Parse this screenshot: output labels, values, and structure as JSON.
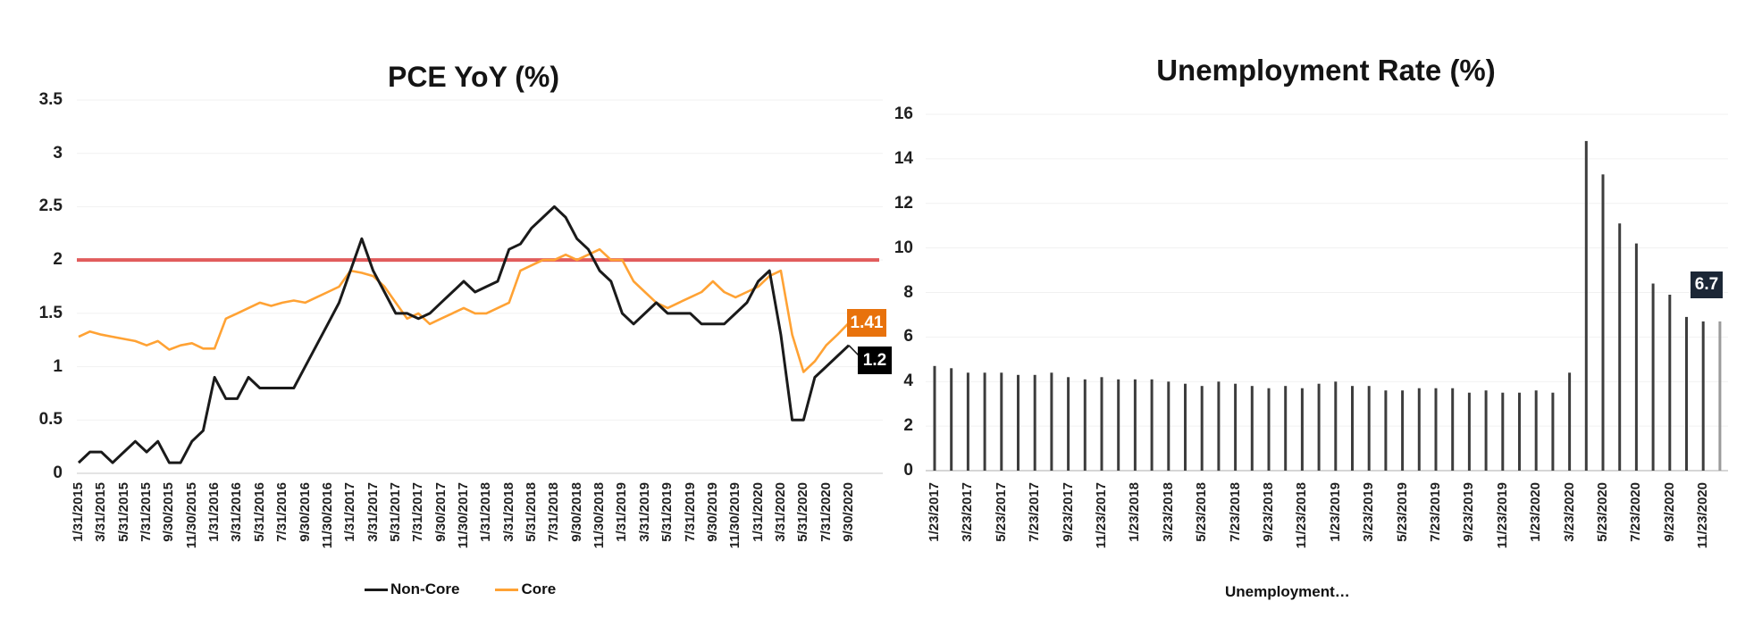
{
  "page": {
    "background": "#FFFFFF"
  },
  "chart_data": [
    {
      "type": "line",
      "title": "PCE YoY (%)",
      "ylim": [
        0,
        3.5
      ],
      "grid": true,
      "legend_position": "bottom",
      "y_ticks": [
        "3.5",
        "3",
        "2.5",
        "2",
        "1.5",
        "1",
        "0.5",
        "0"
      ],
      "y_tick_values": [
        3.5,
        3,
        2.5,
        2,
        1.5,
        1,
        0.5,
        0
      ],
      "x_labels": [
        "1/31/2015",
        "3/31/2015",
        "5/31/2015",
        "7/31/2015",
        "9/30/2015",
        "11/30/2015",
        "1/31/2016",
        "3/31/2016",
        "5/31/2016",
        "7/31/2016",
        "9/30/2016",
        "11/30/2016",
        "1/31/2017",
        "3/31/2017",
        "5/31/2017",
        "7/31/2017",
        "9/30/2017",
        "11/30/2017",
        "1/31/2018",
        "3/31/2018",
        "5/31/2018",
        "7/31/2018",
        "9/30/2018",
        "11/30/2018",
        "1/31/2019",
        "3/31/2019",
        "5/31/2019",
        "7/31/2019",
        "9/30/2019",
        "11/30/2019",
        "1/31/2020",
        "3/31/2020",
        "5/31/2020",
        "7/31/2020",
        "9/30/2020"
      ],
      "reference_line": {
        "value": 2,
        "color": "#E15C5C"
      },
      "series": [
        {
          "name": "Non-Core",
          "color": "#1A1A1A",
          "values": [
            0.1,
            0.2,
            0.2,
            0.1,
            0.2,
            0.3,
            0.2,
            0.3,
            0.1,
            0.1,
            0.3,
            0.4,
            0.9,
            0.7,
            0.7,
            0.9,
            0.8,
            0.8,
            0.8,
            0.8,
            1.0,
            1.2,
            1.4,
            1.6,
            1.9,
            2.2,
            1.9,
            1.7,
            1.5,
            1.5,
            1.45,
            1.5,
            1.6,
            1.7,
            1.8,
            1.7,
            1.75,
            1.8,
            2.1,
            2.15,
            2.3,
            2.4,
            2.5,
            2.4,
            2.2,
            2.1,
            1.9,
            1.8,
            1.5,
            1.4,
            1.5,
            1.6,
            1.5,
            1.5,
            1.5,
            1.4,
            1.4,
            1.4,
            1.5,
            1.6,
            1.8,
            1.9,
            1.3,
            0.5,
            0.5,
            0.9,
            1.0,
            1.1,
            1.2
          ]
        },
        {
          "name": "Core",
          "color": "#FFA234",
          "values": [
            1.28,
            1.33,
            1.3,
            1.28,
            1.26,
            1.24,
            1.2,
            1.24,
            1.16,
            1.2,
            1.22,
            1.17,
            1.17,
            1.45,
            1.5,
            1.55,
            1.6,
            1.57,
            1.6,
            1.62,
            1.6,
            1.65,
            1.7,
            1.75,
            1.9,
            1.88,
            1.85,
            1.75,
            1.6,
            1.45,
            1.5,
            1.4,
            1.45,
            1.5,
            1.55,
            1.5,
            1.5,
            1.55,
            1.6,
            1.9,
            1.95,
            2.0,
            2.0,
            2.05,
            2.0,
            2.05,
            2.1,
            2.0,
            2.0,
            1.8,
            1.7,
            1.6,
            1.55,
            1.6,
            1.65,
            1.7,
            1.8,
            1.7,
            1.65,
            1.7,
            1.75,
            1.85,
            1.9,
            1.3,
            0.95,
            1.05,
            1.2,
            1.3,
            1.41
          ]
        }
      ],
      "end_labels": [
        {
          "text": "1.41",
          "bg": "#E8720C",
          "series": "Core"
        },
        {
          "text": "1.2",
          "bg": "#000000",
          "series": "Non-Core"
        }
      ]
    },
    {
      "type": "bar",
      "title": "Unemployment Rate (%)",
      "ylim": [
        0,
        16
      ],
      "grid": true,
      "legend_position": "bottom",
      "legend_label": "Unemployment…",
      "y_ticks": [
        "16",
        "14",
        "12",
        "10",
        "8",
        "6",
        "4",
        "2",
        "0"
      ],
      "y_tick_values": [
        16,
        14,
        12,
        10,
        8,
        6,
        4,
        2,
        0
      ],
      "x_labels": [
        "1/23/2017",
        "3/23/2017",
        "5/23/2017",
        "7/23/2017",
        "9/23/2017",
        "11/23/2017",
        "1/23/2018",
        "3/23/2018",
        "5/23/2018",
        "7/23/2018",
        "9/23/2018",
        "11/23/2018",
        "1/23/2019",
        "3/23/2019",
        "5/23/2019",
        "7/23/2019",
        "9/23/2019",
        "11/23/2019",
        "1/23/2020",
        "3/23/2020",
        "5/23/2020",
        "7/23/2020",
        "9/23/2020",
        "11/23/2020"
      ],
      "bar_color": "#3D3D3D",
      "last_bar_color": "#9A9A9A",
      "values": [
        4.7,
        4.6,
        4.4,
        4.4,
        4.4,
        4.3,
        4.3,
        4.4,
        4.2,
        4.1,
        4.2,
        4.1,
        4.1,
        4.1,
        4.0,
        3.9,
        3.8,
        4.0,
        3.9,
        3.8,
        3.7,
        3.8,
        3.7,
        3.9,
        4.0,
        3.8,
        3.8,
        3.6,
        3.6,
        3.7,
        3.7,
        3.7,
        3.5,
        3.6,
        3.5,
        3.5,
        3.6,
        3.5,
        4.4,
        14.8,
        13.3,
        11.1,
        10.2,
        8.4,
        7.9,
        6.9,
        6.7,
        6.7
      ],
      "end_label": {
        "text": "6.7",
        "bg": "#1C2736"
      }
    }
  ]
}
